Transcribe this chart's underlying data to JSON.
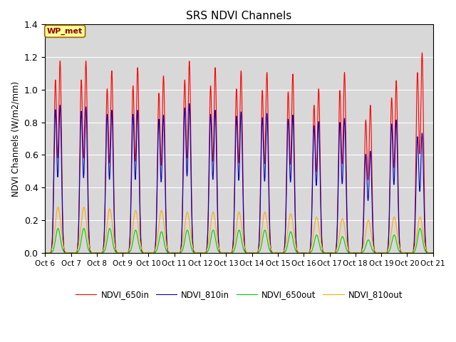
{
  "title": "SRS NDVI Channels",
  "ylabel": "NDVI Channels (W/m2/mm)",
  "xlabel": "",
  "annotation": "WP_met",
  "ylim": [
    0,
    1.4
  ],
  "colors": {
    "NDVI_650in": "#ff0000",
    "NDVI_810in": "#0000bb",
    "NDVI_650out": "#00cc00",
    "NDVI_810out": "#ffaa00"
  },
  "bg_color": "#d8d8d8",
  "x_tick_labels": [
    "Oct 6",
    "Oct 7",
    "Oct 8",
    "Oct 9",
    "Oct 10",
    "Oct 11",
    "Oct 12",
    "Oct 13",
    "Oct 14",
    "Oct 15",
    "Oct 16",
    "Oct 17",
    "Oct 18",
    "Oct 19",
    "Oct 20",
    "Oct 21"
  ],
  "num_days": 15,
  "peak_650in": [
    1.17,
    1.17,
    1.11,
    1.13,
    1.08,
    1.17,
    1.13,
    1.11,
    1.1,
    1.09,
    1.0,
    1.1,
    0.9,
    1.05,
    1.22
  ],
  "peak_810in": [
    0.9,
    0.89,
    0.87,
    0.87,
    0.84,
    0.91,
    0.87,
    0.86,
    0.85,
    0.84,
    0.8,
    0.82,
    0.62,
    0.81,
    0.73
  ],
  "peak_650out": [
    0.15,
    0.15,
    0.15,
    0.14,
    0.13,
    0.14,
    0.14,
    0.14,
    0.14,
    0.13,
    0.11,
    0.1,
    0.08,
    0.11,
    0.15
  ],
  "peak_810out": [
    0.28,
    0.28,
    0.27,
    0.26,
    0.26,
    0.25,
    0.25,
    0.25,
    0.25,
    0.24,
    0.22,
    0.21,
    0.2,
    0.22,
    0.22
  ],
  "yticks": [
    0.0,
    0.2,
    0.4,
    0.6,
    0.8,
    1.0,
    1.2,
    1.4
  ]
}
